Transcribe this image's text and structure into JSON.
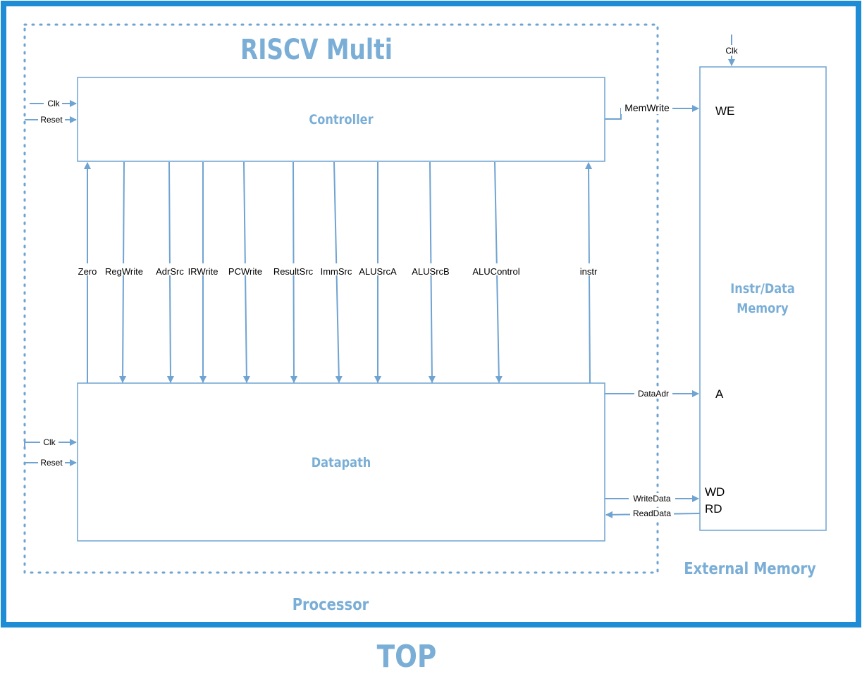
{
  "colors": {
    "outer_border": "#1f8dd6",
    "wire": "#6fa3d2",
    "title_text": "#7aaed6"
  },
  "labels": {
    "top": "TOP",
    "processor_title": "RISCV Multi",
    "processor": "Processor",
    "controller": "Controller",
    "datapath": "Datapath",
    "memory_line1": "Instr/Data",
    "memory_line2": "Memory",
    "external_memory": "External Memory"
  },
  "controller_inputs": [
    "Clk",
    "Reset"
  ],
  "datapath_inputs": [
    "Clk",
    "Reset"
  ],
  "control_signals": [
    "Zero",
    "RegWrite",
    "AdrSrc",
    "IRWrite",
    "PCWrite",
    "ResultSrc",
    "ImmSrc",
    "ALUSrcA",
    "ALUSrcB",
    "ALUControl",
    "instr"
  ],
  "memory_ports": {
    "clk": "Clk",
    "we": "WE",
    "a": "A",
    "wd": "WD",
    "rd": "RD"
  },
  "memory_signals": {
    "mem_write": "MemWrite",
    "data_adr": "DataAdr",
    "write_data": "WriteData",
    "read_data": "ReadData"
  }
}
